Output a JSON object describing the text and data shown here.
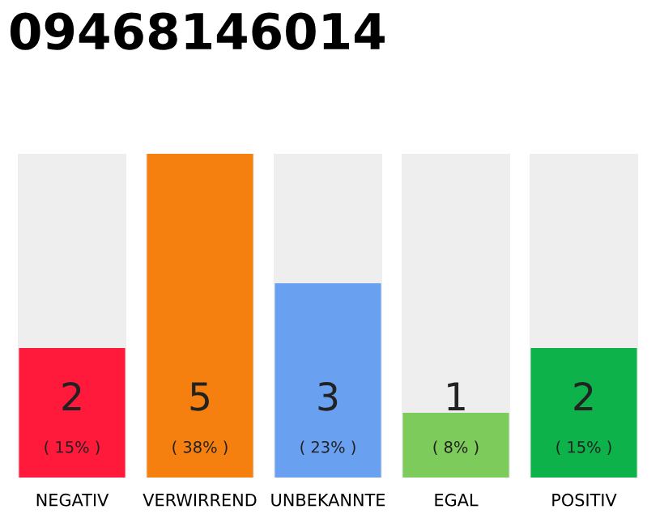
{
  "chart_data": {
    "type": "bar",
    "title": "09468146014",
    "categories": [
      "NEGATIV",
      "VERWIRREND",
      "UNBEKANNTE",
      "EGAL",
      "POSITIV"
    ],
    "values": [
      2,
      5,
      3,
      1,
      2
    ],
    "colors": [
      "#ff1a3c",
      "#f5800f",
      "#6aa0f0",
      "#7dcb5a",
      "#0db34a"
    ],
    "tick_labels": "x",
    "grid": false,
    "legend": false,
    "data_labels": true,
    "annotations": [
      "( 15% )",
      "( 38% )",
      "( 23% )",
      "( 8% )",
      "( 15% )"
    ]
  }
}
